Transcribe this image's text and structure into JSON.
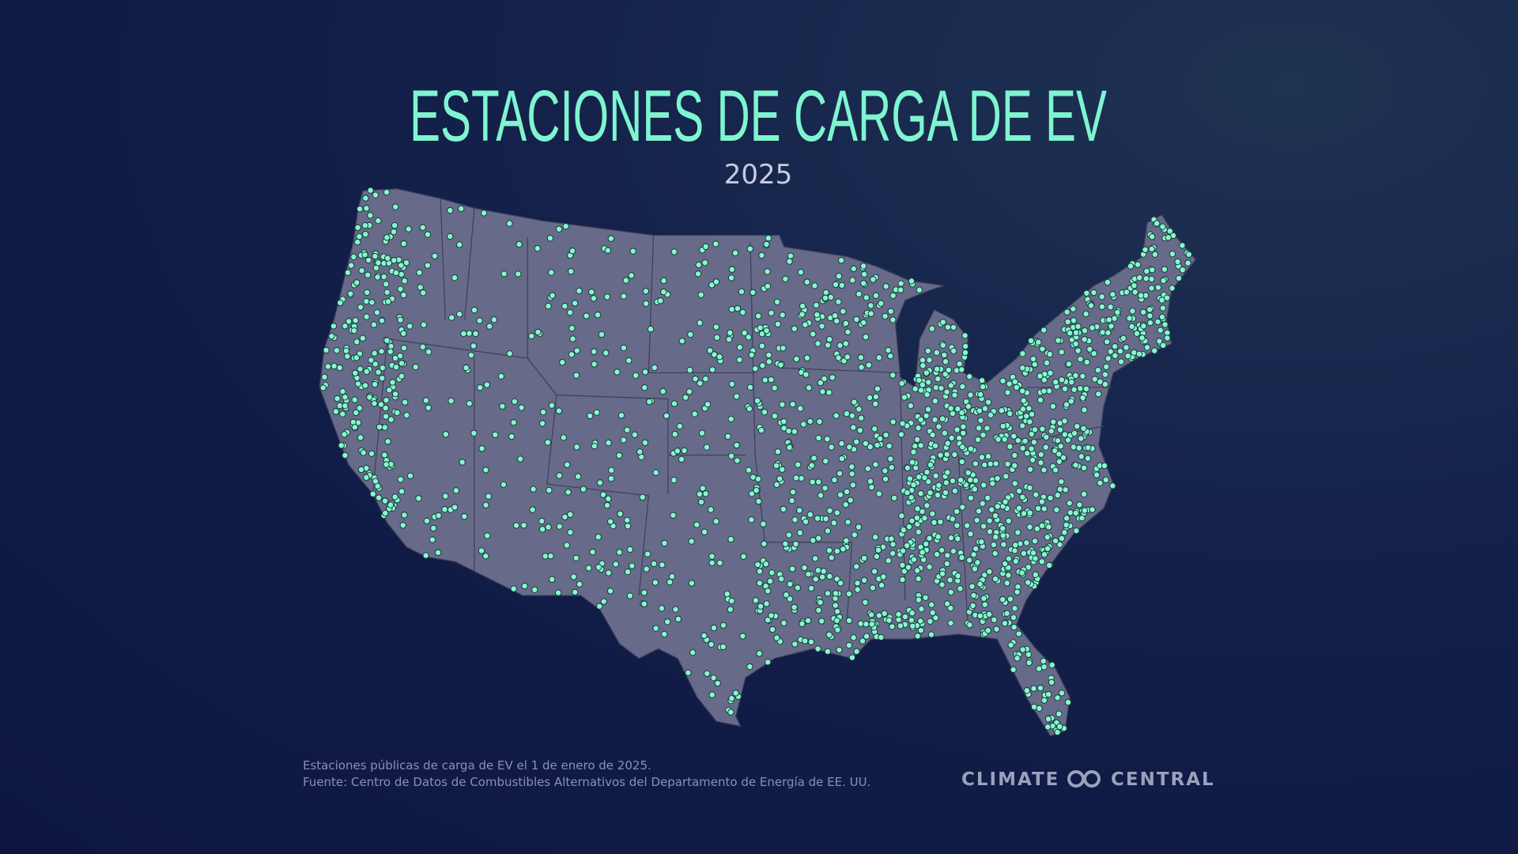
{
  "header": {
    "title": "ESTACIONES DE CARGA DE EV",
    "subtitle": "2025"
  },
  "footer": {
    "note": "Estaciones públicas de carga de EV el 1 de enero de 2025.",
    "source": "Fuente: Centro de Datos de Combustibles Alternativos del Departamento de Energía de EE. UU."
  },
  "logo": {
    "left": "CLIMATE",
    "right": "CENTRAL"
  }
}
